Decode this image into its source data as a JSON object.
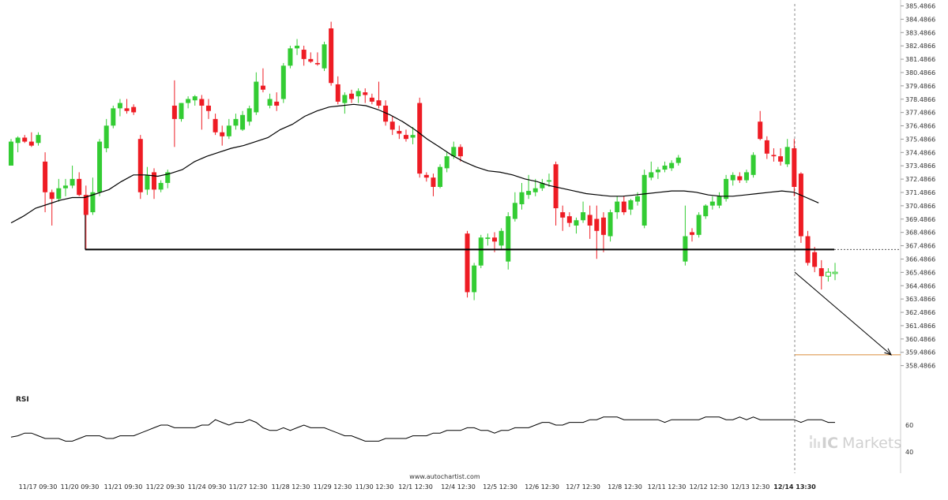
{
  "chart_data": {
    "type": "candlestick",
    "price_axis": {
      "min": 357.4866,
      "max": 385.4866,
      "tick_labels": [
        "385.4866",
        "384.4866",
        "383.4866",
        "382.4866",
        "381.4866",
        "380.4866",
        "379.4866",
        "378.4866",
        "377.4866",
        "376.4866",
        "375.4866",
        "374.4866",
        "373.4866",
        "372.4866",
        "371.4866",
        "370.4866",
        "369.4866",
        "368.4866",
        "367.4866",
        "366.4866",
        "365.4866",
        "364.4866",
        "363.4866",
        "362.4866",
        "361.4866",
        "360.4866",
        "359.4866",
        "358.4866"
      ]
    },
    "time_axis": {
      "tick_labels": [
        "11/17 09:30",
        "11/20 09:30",
        "11/21 09:30",
        "11/22 09:30",
        "11/24 09:30",
        "11/27 12:30",
        "11/28 12:30",
        "11/29 12:30",
        "11/30 12:30",
        "12/1 12:30",
        "12/4 12:30",
        "12/5 12:30",
        "12/6 12:30",
        "12/7 12:30",
        "12/8 12:30",
        "12/11 12:30",
        "12/12 12:30",
        "12/13 12:30",
        "12/14 13:30"
      ],
      "highlighted_label": "12/14 13:30"
    },
    "candles": [
      {
        "o": 373.5,
        "h": 375.5,
        "l": 373.5,
        "c": 375.3
      },
      {
        "o": 375.2,
        "h": 375.7,
        "l": 374.5,
        "c": 375.6
      },
      {
        "o": 375.6,
        "h": 375.8,
        "l": 375.2,
        "c": 375.3
      },
      {
        "o": 375.3,
        "h": 376.0,
        "l": 374.9,
        "c": 375.0
      },
      {
        "o": 375.2,
        "h": 376.0,
        "l": 375.0,
        "c": 375.8
      },
      {
        "o": 373.8,
        "h": 374.5,
        "l": 370.0,
        "c": 371.5
      },
      {
        "o": 371.5,
        "h": 371.7,
        "l": 369.0,
        "c": 371.0
      },
      {
        "o": 371.0,
        "h": 372.5,
        "l": 370.8,
        "c": 371.8
      },
      {
        "o": 371.8,
        "h": 372.5,
        "l": 371.2,
        "c": 372.0
      },
      {
        "o": 372.0,
        "h": 373.5,
        "l": 371.8,
        "c": 372.5
      },
      {
        "o": 372.5,
        "h": 373.0,
        "l": 371.2,
        "c": 371.3
      },
      {
        "o": 371.3,
        "h": 372.0,
        "l": 367.2,
        "c": 369.8
      },
      {
        "o": 370.0,
        "h": 372.6,
        "l": 369.8,
        "c": 371.5
      },
      {
        "o": 371.5,
        "h": 375.5,
        "l": 371.2,
        "c": 375.3
      },
      {
        "o": 374.8,
        "h": 377.0,
        "l": 374.5,
        "c": 376.5
      },
      {
        "o": 376.5,
        "h": 378.0,
        "l": 376.3,
        "c": 377.8
      },
      {
        "o": 377.8,
        "h": 378.5,
        "l": 377.2,
        "c": 378.2
      },
      {
        "o": 377.8,
        "h": 378.5,
        "l": 377.4,
        "c": 377.6
      },
      {
        "o": 377.9,
        "h": 378.1,
        "l": 377.3,
        "c": 377.5
      },
      {
        "o": 375.5,
        "h": 375.8,
        "l": 371.0,
        "c": 371.5
      },
      {
        "o": 371.7,
        "h": 373.4,
        "l": 371.3,
        "c": 372.8
      },
      {
        "o": 373.0,
        "h": 373.3,
        "l": 371.0,
        "c": 371.7
      },
      {
        "o": 371.7,
        "h": 372.4,
        "l": 371.5,
        "c": 372.2
      },
      {
        "o": 372.2,
        "h": 373.2,
        "l": 371.8,
        "c": 373.0
      },
      {
        "o": 378.0,
        "h": 379.9,
        "l": 374.9,
        "c": 377.0
      },
      {
        "o": 377.0,
        "h": 378.2,
        "l": 376.8,
        "c": 378.2
      },
      {
        "o": 378.2,
        "h": 378.7,
        "l": 377.8,
        "c": 378.5
      },
      {
        "o": 378.4,
        "h": 378.8,
        "l": 378.0,
        "c": 378.7
      },
      {
        "o": 378.5,
        "h": 378.8,
        "l": 376.2,
        "c": 378.0
      },
      {
        "o": 378.0,
        "h": 378.5,
        "l": 377.0,
        "c": 377.6
      },
      {
        "o": 377.0,
        "h": 377.4,
        "l": 375.8,
        "c": 376.0
      },
      {
        "o": 376.0,
        "h": 376.5,
        "l": 375.0,
        "c": 375.7
      },
      {
        "o": 375.7,
        "h": 377.0,
        "l": 375.5,
        "c": 376.5
      },
      {
        "o": 376.5,
        "h": 377.4,
        "l": 376.2,
        "c": 377.0
      },
      {
        "o": 376.2,
        "h": 377.6,
        "l": 376.1,
        "c": 377.3
      },
      {
        "o": 376.8,
        "h": 378.0,
        "l": 376.5,
        "c": 377.8
      },
      {
        "o": 377.5,
        "h": 380.5,
        "l": 377.3,
        "c": 379.8
      },
      {
        "o": 379.5,
        "h": 380.8,
        "l": 379.0,
        "c": 379.2
      },
      {
        "o": 378.0,
        "h": 378.9,
        "l": 377.8,
        "c": 378.5
      },
      {
        "o": 378.3,
        "h": 379.0,
        "l": 377.6,
        "c": 378.0
      },
      {
        "o": 378.5,
        "h": 381.2,
        "l": 378.2,
        "c": 381.0
      },
      {
        "o": 381.0,
        "h": 382.5,
        "l": 380.8,
        "c": 382.3
      },
      {
        "o": 382.3,
        "h": 383.0,
        "l": 381.8,
        "c": 382.5
      },
      {
        "o": 382.2,
        "h": 382.5,
        "l": 381.0,
        "c": 381.5
      },
      {
        "o": 381.5,
        "h": 382.0,
        "l": 381.2,
        "c": 381.3
      },
      {
        "o": 381.2,
        "h": 382.0,
        "l": 381.0,
        "c": 381.1
      },
      {
        "o": 380.8,
        "h": 382.8,
        "l": 380.6,
        "c": 382.6
      },
      {
        "o": 383.8,
        "h": 384.3,
        "l": 379.5,
        "c": 379.7
      },
      {
        "o": 379.6,
        "h": 380.2,
        "l": 378.1,
        "c": 378.3
      },
      {
        "o": 378.2,
        "h": 379.0,
        "l": 377.4,
        "c": 378.8
      },
      {
        "o": 378.9,
        "h": 379.2,
        "l": 378.2,
        "c": 378.5
      },
      {
        "o": 378.7,
        "h": 379.3,
        "l": 378.2,
        "c": 379.1
      },
      {
        "o": 379.0,
        "h": 379.3,
        "l": 378.2,
        "c": 378.8
      },
      {
        "o": 378.6,
        "h": 378.9,
        "l": 378.1,
        "c": 378.3
      },
      {
        "o": 378.4,
        "h": 379.8,
        "l": 377.8,
        "c": 378.0
      },
      {
        "o": 378.0,
        "h": 378.4,
        "l": 376.5,
        "c": 376.8
      },
      {
        "o": 376.8,
        "h": 377.2,
        "l": 375.8,
        "c": 376.2
      },
      {
        "o": 376.1,
        "h": 376.5,
        "l": 375.5,
        "c": 375.9
      },
      {
        "o": 375.8,
        "h": 376.2,
        "l": 375.3,
        "c": 375.5
      },
      {
        "o": 375.6,
        "h": 376.4,
        "l": 375.1,
        "c": 375.8
      },
      {
        "o": 378.2,
        "h": 378.6,
        "l": 372.6,
        "c": 372.9
      },
      {
        "o": 372.8,
        "h": 373.0,
        "l": 372.3,
        "c": 372.6
      },
      {
        "o": 372.6,
        "h": 372.9,
        "l": 371.2,
        "c": 371.9
      },
      {
        "o": 371.9,
        "h": 373.6,
        "l": 371.8,
        "c": 373.4
      },
      {
        "o": 373.3,
        "h": 374.5,
        "l": 373.0,
        "c": 374.2
      },
      {
        "o": 374.2,
        "h": 375.3,
        "l": 374.0,
        "c": 374.9
      },
      {
        "o": 374.9,
        "h": 375.1,
        "l": 373.8,
        "c": 374.2
      },
      {
        "o": 368.4,
        "h": 368.6,
        "l": 363.6,
        "c": 364.0
      },
      {
        "o": 364.0,
        "h": 366.2,
        "l": 363.4,
        "c": 366.0
      },
      {
        "o": 366.0,
        "h": 368.3,
        "l": 365.8,
        "c": 368.1
      },
      {
        "o": 368.0,
        "h": 368.4,
        "l": 367.5,
        "c": 368.1
      },
      {
        "o": 368.1,
        "h": 368.5,
        "l": 367.0,
        "c": 367.8
      },
      {
        "o": 367.5,
        "h": 368.8,
        "l": 367.2,
        "c": 368.6
      },
      {
        "o": 366.3,
        "h": 370.0,
        "l": 365.7,
        "c": 369.7
      },
      {
        "o": 369.5,
        "h": 371.5,
        "l": 369.3,
        "c": 370.7
      },
      {
        "o": 370.6,
        "h": 372.2,
        "l": 370.2,
        "c": 371.5
      },
      {
        "o": 371.3,
        "h": 372.8,
        "l": 371.0,
        "c": 371.6
      },
      {
        "o": 371.5,
        "h": 372.5,
        "l": 371.2,
        "c": 371.8
      },
      {
        "o": 371.8,
        "h": 372.5,
        "l": 371.6,
        "c": 372.2
      },
      {
        "o": 372.3,
        "h": 372.9,
        "l": 371.9,
        "c": 372.4
      },
      {
        "o": 373.6,
        "h": 373.8,
        "l": 369.0,
        "c": 370.3
      },
      {
        "o": 370.0,
        "h": 370.5,
        "l": 368.6,
        "c": 369.6
      },
      {
        "o": 369.7,
        "h": 370.0,
        "l": 368.9,
        "c": 369.2
      },
      {
        "o": 369.0,
        "h": 369.6,
        "l": 368.4,
        "c": 369.4
      },
      {
        "o": 369.4,
        "h": 370.8,
        "l": 369.2,
        "c": 370.0
      },
      {
        "o": 369.8,
        "h": 370.5,
        "l": 368.0,
        "c": 369.0
      },
      {
        "o": 369.5,
        "h": 370.5,
        "l": 366.5,
        "c": 368.6
      },
      {
        "o": 369.6,
        "h": 370.0,
        "l": 367.0,
        "c": 368.3
      },
      {
        "o": 368.2,
        "h": 370.2,
        "l": 367.8,
        "c": 370.0
      },
      {
        "o": 370.0,
        "h": 371.2,
        "l": 369.5,
        "c": 370.8
      },
      {
        "o": 370.8,
        "h": 371.2,
        "l": 369.8,
        "c": 370.0
      },
      {
        "o": 370.2,
        "h": 371.0,
        "l": 369.8,
        "c": 370.9
      },
      {
        "o": 370.8,
        "h": 371.5,
        "l": 370.5,
        "c": 371.2
      },
      {
        "o": 369.0,
        "h": 373.2,
        "l": 368.8,
        "c": 372.8
      },
      {
        "o": 372.6,
        "h": 373.8,
        "l": 372.4,
        "c": 373.0
      },
      {
        "o": 373.0,
        "h": 373.4,
        "l": 372.5,
        "c": 373.2
      },
      {
        "o": 373.2,
        "h": 373.8,
        "l": 373.0,
        "c": 373.5
      },
      {
        "o": 373.3,
        "h": 373.9,
        "l": 373.1,
        "c": 373.7
      },
      {
        "o": 373.7,
        "h": 374.3,
        "l": 373.5,
        "c": 374.1
      },
      {
        "o": 366.3,
        "h": 370.5,
        "l": 366.0,
        "c": 368.2
      },
      {
        "o": 368.5,
        "h": 368.8,
        "l": 367.8,
        "c": 368.3
      },
      {
        "o": 368.3,
        "h": 370.0,
        "l": 368.1,
        "c": 369.8
      },
      {
        "o": 369.7,
        "h": 370.6,
        "l": 369.5,
        "c": 370.5
      },
      {
        "o": 370.5,
        "h": 371.2,
        "l": 370.2,
        "c": 370.8
      },
      {
        "o": 370.5,
        "h": 371.5,
        "l": 370.3,
        "c": 371.2
      },
      {
        "o": 371.0,
        "h": 372.8,
        "l": 370.8,
        "c": 372.5
      },
      {
        "o": 372.4,
        "h": 373.0,
        "l": 372.0,
        "c": 372.8
      },
      {
        "o": 372.7,
        "h": 373.0,
        "l": 372.2,
        "c": 372.4
      },
      {
        "o": 372.4,
        "h": 373.2,
        "l": 372.2,
        "c": 373.0
      },
      {
        "o": 372.8,
        "h": 374.5,
        "l": 372.6,
        "c": 374.3
      },
      {
        "o": 376.8,
        "h": 377.6,
        "l": 375.4,
        "c": 375.5
      },
      {
        "o": 375.4,
        "h": 375.7,
        "l": 374.0,
        "c": 374.4
      },
      {
        "o": 374.3,
        "h": 374.8,
        "l": 373.8,
        "c": 374.2
      },
      {
        "o": 374.2,
        "h": 374.8,
        "l": 373.5,
        "c": 373.8
      },
      {
        "o": 373.6,
        "h": 375.5,
        "l": 373.4,
        "c": 374.9
      },
      {
        "o": 374.8,
        "h": 375.5,
        "l": 371.2,
        "c": 371.9
      },
      {
        "o": 372.9,
        "h": 373.0,
        "l": 367.7,
        "c": 368.2
      },
      {
        "o": 368.2,
        "h": 368.6,
        "l": 366.0,
        "c": 366.2
      },
      {
        "o": 367.0,
        "h": 367.4,
        "l": 365.5,
        "c": 365.9
      },
      {
        "o": 365.8,
        "h": 366.4,
        "l": 364.2,
        "c": 365.2
      },
      {
        "o": 365.2,
        "h": 365.8,
        "l": 364.8,
        "c": 365.5
      },
      {
        "o": 365.4,
        "h": 366.2,
        "l": 364.9,
        "c": 365.5
      }
    ],
    "moving_average": [
      369.2,
      369.7,
      370.3,
      370.6,
      370.9,
      371.1,
      371.1,
      371.4,
      371.7,
      372.3,
      372.8,
      372.8,
      372.7,
      372.9,
      373.2,
      373.8,
      374.2,
      374.5,
      374.8,
      375.0,
      375.3,
      375.6,
      376.2,
      376.6,
      377.2,
      377.6,
      377.9,
      378.0,
      378.1,
      378.0,
      377.7,
      377.3,
      376.8,
      376.2,
      375.5,
      374.9,
      374.3,
      373.8,
      373.4,
      373.1,
      373.0,
      372.8,
      372.5,
      372.3,
      372.0,
      371.8,
      371.6,
      371.4,
      371.3,
      371.2,
      371.2,
      371.3,
      371.4,
      371.5,
      371.6,
      371.6,
      371.5,
      371.3,
      371.2,
      371.2,
      371.3,
      371.4,
      371.5,
      371.6,
      371.5,
      371.1,
      370.7
    ],
    "moving_average_start_index": 0,
    "support_level": {
      "value": 367.2,
      "from_index": 11
    },
    "forecast_arrow": {
      "from_index": 121,
      "from_price": 365.5,
      "to_price": 359.3
    },
    "target_level": {
      "value": 359.3
    },
    "current_price_level": {
      "value": 367.2
    },
    "rsi": {
      "label": "RSI",
      "tick_labels": [
        "60",
        "40"
      ],
      "range": [
        30,
        80
      ],
      "values": [
        51,
        52,
        54,
        54,
        52,
        50,
        50,
        50,
        48,
        48,
        50,
        52,
        52,
        52,
        50,
        50,
        52,
        52,
        52,
        54,
        56,
        58,
        60,
        60,
        58,
        58,
        58,
        58,
        60,
        60,
        64,
        62,
        60,
        62,
        62,
        64,
        62,
        58,
        56,
        56,
        58,
        56,
        58,
        60,
        58,
        58,
        58,
        56,
        54,
        52,
        52,
        50,
        48,
        48,
        48,
        50,
        50,
        50,
        50,
        52,
        52,
        52,
        54,
        54,
        56,
        56,
        56,
        58,
        58,
        56,
        56,
        54,
        56,
        56,
        58,
        58,
        58,
        60,
        62,
        62,
        60,
        60,
        62,
        62,
        62,
        64,
        64,
        66,
        66,
        66,
        64,
        64,
        64,
        64,
        64,
        64,
        62,
        64,
        64,
        64,
        64,
        64,
        66,
        66,
        66,
        64,
        64,
        66,
        64,
        66,
        64,
        64,
        64,
        64,
        64,
        64,
        62,
        64,
        64,
        64,
        62,
        62
      ]
    },
    "colors": {
      "up": "#33cc33",
      "down": "#ee1c24",
      "support_line": "#000000",
      "arrow": "#000000",
      "target_line": "#d98c3a",
      "current_line": "#555555"
    }
  },
  "watermark": {
    "url": "www.autochartist.com",
    "brand_prefix": "IC",
    "brand_suffix": "Markets"
  }
}
